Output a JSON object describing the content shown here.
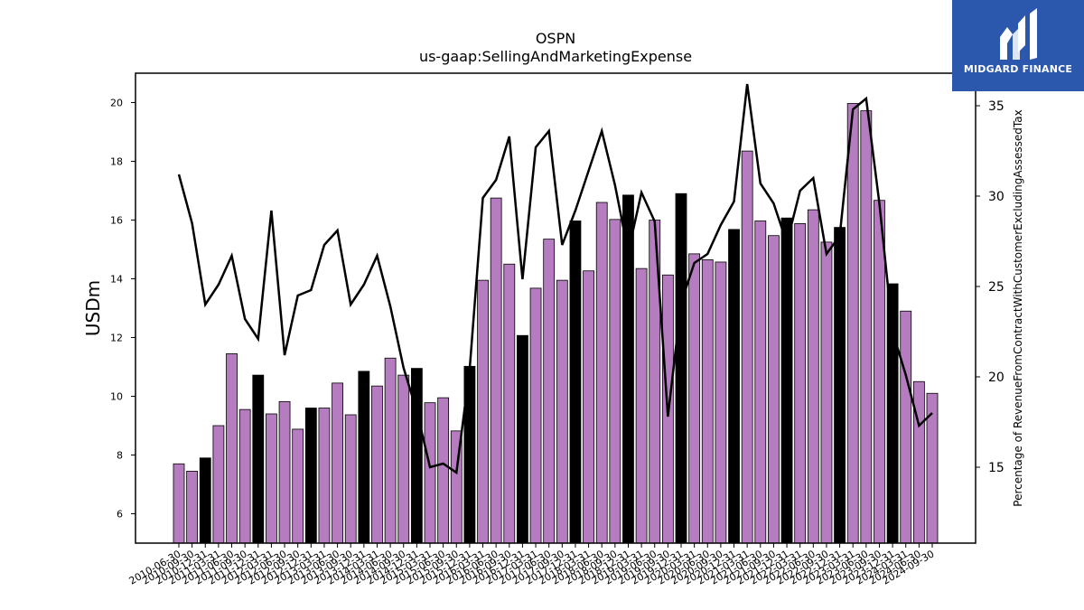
{
  "brand": {
    "name": "MIDGARD FINANCE",
    "bg_color": "#2b58ad"
  },
  "chart_data": {
    "type": "bar+line",
    "title": "OSPN",
    "subtitle": "us-gaap:SellingAndMarketingExpense",
    "ylabel": "USDm",
    "y2label": "Percentage of RevenueFromContractWithCustomerExcludingAssessedTax",
    "ylim": [
      5,
      21
    ],
    "yticks": [
      6,
      8,
      10,
      12,
      14,
      16,
      18,
      20
    ],
    "y2lim": [
      10.8,
      36.8
    ],
    "y2ticks": [
      15,
      20,
      25,
      30,
      35
    ],
    "bar_color": "#b57cbf",
    "bar_highlight_color": "#000000",
    "line_color": "#000000",
    "categories": [
      "2010-06-30",
      "2010-09-30",
      "2010-12-31",
      "2011-03-31",
      "2011-06-30",
      "2011-09-30",
      "2011-12-31",
      "2012-03-31",
      "2012-06-30",
      "2012-09-30",
      "2012-12-31",
      "2013-03-31",
      "2013-06-30",
      "2013-09-30",
      "2013-12-31",
      "2014-03-31",
      "2014-06-30",
      "2014-09-30",
      "2014-12-31",
      "2015-03-31",
      "2015-06-30",
      "2015-09-30",
      "2015-12-31",
      "2016-03-31",
      "2016-06-30",
      "2016-09-30",
      "2016-12-31",
      "2017-03-31",
      "2017-06-30",
      "2017-09-30",
      "2017-12-31",
      "2018-03-31",
      "2018-06-30",
      "2018-09-30",
      "2018-12-31",
      "2019-03-31",
      "2019-06-30",
      "2019-09-30",
      "2019-12-31",
      "2020-03-31",
      "2020-06-30",
      "2020-09-30",
      "2020-12-31",
      "2021-03-31",
      "2021-06-30",
      "2021-09-30",
      "2021-12-31",
      "2022-03-31",
      "2022-06-30",
      "2022-09-30",
      "2022-12-31",
      "2023-03-31",
      "2023-06-30",
      "2023-09-30",
      "2023-12-31",
      "2024-03-31",
      "2024-06-30",
      "2024-09-30"
    ],
    "series": [
      {
        "kind": "bar",
        "values": [
          7.7,
          7.45,
          7.9,
          9.0,
          11.45,
          9.55,
          10.72,
          9.4,
          9.82,
          8.88,
          9.6,
          9.6,
          10.45,
          9.37,
          10.85,
          10.35,
          11.3,
          10.72,
          10.95,
          9.78,
          9.95,
          8.82,
          11.02,
          13.95,
          16.75,
          14.5,
          12.07,
          13.68,
          15.35,
          13.95,
          15.97,
          14.27,
          16.6,
          16.02,
          16.85,
          14.35,
          16.0,
          14.13,
          16.9,
          14.85,
          14.65,
          14.57,
          15.68,
          18.35,
          15.97,
          15.47,
          16.07,
          15.88,
          16.35,
          15.25,
          15.75,
          19.97,
          19.72,
          16.67,
          13.83,
          12.9,
          10.5,
          10.1
        ],
        "highlight": [
          false,
          false,
          true,
          false,
          false,
          false,
          true,
          false,
          false,
          false,
          true,
          false,
          false,
          false,
          true,
          false,
          false,
          false,
          true,
          false,
          false,
          false,
          true,
          false,
          false,
          false,
          true,
          false,
          false,
          false,
          true,
          false,
          false,
          false,
          true,
          false,
          false,
          false,
          true,
          false,
          false,
          false,
          true,
          false,
          false,
          false,
          true,
          false,
          false,
          false,
          true,
          false,
          false,
          false,
          true,
          false,
          false,
          false
        ]
      },
      {
        "kind": "line",
        "axis": "right",
        "values": [
          31.2,
          28.5,
          24.0,
          25.1,
          26.7,
          23.2,
          22.1,
          29.2,
          21.2,
          24.5,
          24.8,
          27.3,
          28.1,
          24.0,
          25.1,
          26.7,
          23.9,
          20.5,
          18.1,
          15.0,
          15.2,
          14.7,
          20.4,
          29.9,
          30.9,
          33.3,
          25.4,
          32.7,
          33.6,
          27.3,
          29.2,
          31.4,
          33.6,
          30.6,
          26.9,
          30.2,
          28.6,
          17.8,
          24.1,
          26.3,
          26.8,
          28.4,
          29.7,
          36.2,
          30.7,
          29.6,
          27.4,
          30.3,
          31.0,
          26.8,
          27.8,
          34.8,
          35.4,
          29.6,
          22.5,
          20.1,
          17.3,
          18.0
        ]
      }
    ]
  }
}
